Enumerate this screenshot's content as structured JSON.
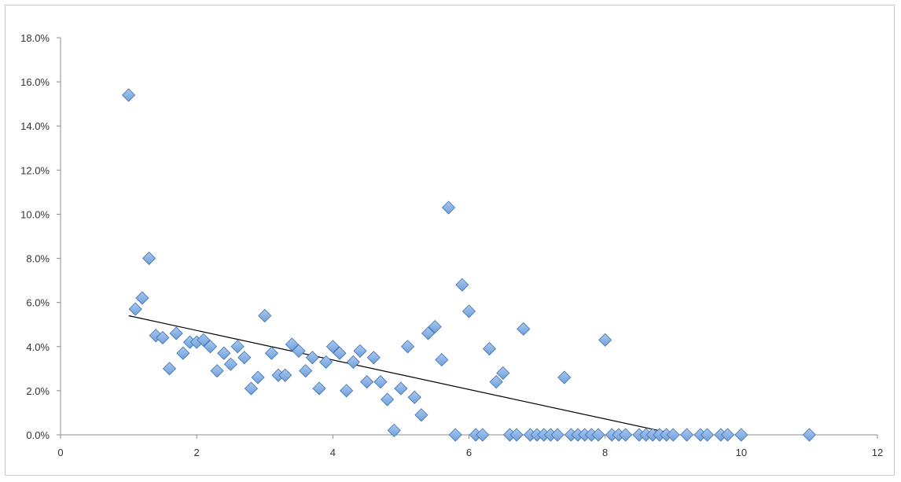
{
  "chart_data": {
    "type": "scatter",
    "title": "",
    "xlabel": "",
    "ylabel": "",
    "xlim": [
      0,
      12
    ],
    "ylim": [
      0,
      18
    ],
    "x_ticks": [
      0,
      2,
      4,
      6,
      8,
      10,
      12
    ],
    "x_tick_labels": [
      "0",
      "2",
      "4",
      "6",
      "8",
      "10",
      "12"
    ],
    "y_ticks": [
      0,
      2,
      4,
      6,
      8,
      10,
      12,
      14,
      16,
      18
    ],
    "y_tick_labels": [
      "0.0%",
      "2.0%",
      "4.0%",
      "6.0%",
      "8.0%",
      "10.0%",
      "12.0%",
      "14.0%",
      "16.0%",
      "18.0%"
    ],
    "grid": false,
    "legend": "none",
    "marker_color": "#6fa0dc",
    "marker_edge_color": "#3f6fae",
    "trendline_color": "#000000",
    "series": [
      {
        "points": [
          [
            1.0,
            15.4
          ],
          [
            1.1,
            5.7
          ],
          [
            1.2,
            6.2
          ],
          [
            1.3,
            8.0
          ],
          [
            1.4,
            4.5
          ],
          [
            1.5,
            4.4
          ],
          [
            1.6,
            3.0
          ],
          [
            1.7,
            4.6
          ],
          [
            1.8,
            3.7
          ],
          [
            1.9,
            4.2
          ],
          [
            2.0,
            4.2
          ],
          [
            2.1,
            4.3
          ],
          [
            2.2,
            4.0
          ],
          [
            2.3,
            2.9
          ],
          [
            2.4,
            3.7
          ],
          [
            2.5,
            3.2
          ],
          [
            2.6,
            4.0
          ],
          [
            2.7,
            3.5
          ],
          [
            2.8,
            2.1
          ],
          [
            2.9,
            2.6
          ],
          [
            3.0,
            5.4
          ],
          [
            3.1,
            3.7
          ],
          [
            3.2,
            2.7
          ],
          [
            3.3,
            2.7
          ],
          [
            3.4,
            4.1
          ],
          [
            3.5,
            3.8
          ],
          [
            3.6,
            2.9
          ],
          [
            3.7,
            3.5
          ],
          [
            3.8,
            2.1
          ],
          [
            3.9,
            3.3
          ],
          [
            4.0,
            4.0
          ],
          [
            4.1,
            3.7
          ],
          [
            4.2,
            2.0
          ],
          [
            4.3,
            3.3
          ],
          [
            4.4,
            3.8
          ],
          [
            4.5,
            2.4
          ],
          [
            4.6,
            3.5
          ],
          [
            4.7,
            2.4
          ],
          [
            4.8,
            1.6
          ],
          [
            4.9,
            0.2
          ],
          [
            5.0,
            2.1
          ],
          [
            5.1,
            4.0
          ],
          [
            5.2,
            1.7
          ],
          [
            5.3,
            0.9
          ],
          [
            5.4,
            4.6
          ],
          [
            5.5,
            4.9
          ],
          [
            5.6,
            3.4
          ],
          [
            5.7,
            10.3
          ],
          [
            5.8,
            0.0
          ],
          [
            5.9,
            6.8
          ],
          [
            6.0,
            5.6
          ],
          [
            6.1,
            0.0
          ],
          [
            6.2,
            0.0
          ],
          [
            6.3,
            3.9
          ],
          [
            6.4,
            2.4
          ],
          [
            6.5,
            2.8
          ],
          [
            6.6,
            0.0
          ],
          [
            6.7,
            0.0
          ],
          [
            6.8,
            4.8
          ],
          [
            6.9,
            0.0
          ],
          [
            7.0,
            0.0
          ],
          [
            7.1,
            0.0
          ],
          [
            7.2,
            0.0
          ],
          [
            7.3,
            0.0
          ],
          [
            7.4,
            2.6
          ],
          [
            7.5,
            0.0
          ],
          [
            7.6,
            0.0
          ],
          [
            7.7,
            0.0
          ],
          [
            7.8,
            0.0
          ],
          [
            7.9,
            0.0
          ],
          [
            8.0,
            4.3
          ],
          [
            8.1,
            0.0
          ],
          [
            8.2,
            0.0
          ],
          [
            8.3,
            0.0
          ],
          [
            8.5,
            0.0
          ],
          [
            8.6,
            0.0
          ],
          [
            8.7,
            0.0
          ],
          [
            8.8,
            0.0
          ],
          [
            8.9,
            0.0
          ],
          [
            9.0,
            0.0
          ],
          [
            9.2,
            0.0
          ],
          [
            9.4,
            0.0
          ],
          [
            9.5,
            0.0
          ],
          [
            9.7,
            0.0
          ],
          [
            9.8,
            0.0
          ],
          [
            10.0,
            0.0
          ],
          [
            11.0,
            0.0
          ]
        ]
      }
    ],
    "trendline": {
      "type": "linear",
      "points": [
        [
          1.0,
          5.4
        ],
        [
          9.0,
          0.05
        ]
      ]
    }
  }
}
